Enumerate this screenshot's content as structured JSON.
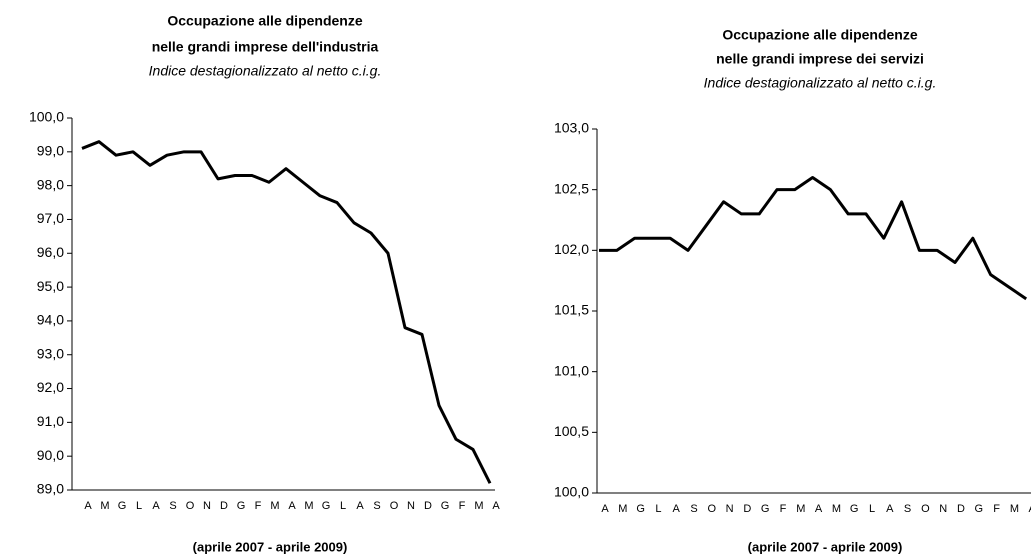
{
  "chart_data": [
    {
      "type": "line",
      "title": [
        "Occupazione alle dipendenze",
        "nelle grandi imprese dell'industria"
      ],
      "subtitle": "Indice destagionalizzato al netto c.i.g.",
      "xlabel": "(aprile 2007 - aprile 2009)",
      "categories": [
        "A",
        "M",
        "G",
        "L",
        "A",
        "S",
        "O",
        "N",
        "D",
        "G",
        "F",
        "M",
        "A",
        "M",
        "G",
        "L",
        "A",
        "S",
        "O",
        "N",
        "D",
        "G",
        "F",
        "M",
        "A"
      ],
      "series": [
        {
          "name": "Industria",
          "color": "#000000",
          "values": [
            99.1,
            99.3,
            98.9,
            99.0,
            98.6,
            98.9,
            99.0,
            99.0,
            98.2,
            98.3,
            98.3,
            98.1,
            98.5,
            98.1,
            97.7,
            97.5,
            96.9,
            96.6,
            96.0,
            93.8,
            93.6,
            91.5,
            90.5,
            90.2,
            89.2
          ]
        }
      ],
      "ylim": [
        89,
        100
      ],
      "yticks": [
        {
          "value": 89,
          "label": "89,0"
        },
        {
          "value": 90,
          "label": "90,0"
        },
        {
          "value": 91,
          "label": "91,0"
        },
        {
          "value": 92,
          "label": "92,0"
        },
        {
          "value": 93,
          "label": "93,0"
        },
        {
          "value": 94,
          "label": "94,0"
        },
        {
          "value": 95,
          "label": "95,0"
        },
        {
          "value": 96,
          "label": "96,0"
        },
        {
          "value": 97,
          "label": "97,0"
        },
        {
          "value": 98,
          "label": "98,0"
        },
        {
          "value": 99,
          "label": "99,0"
        },
        {
          "value": 100,
          "label": "100,0"
        }
      ],
      "grid": false
    },
    {
      "type": "line",
      "title": [
        "Occupazione alle dipendenze",
        "nelle grandi imprese dei servizi"
      ],
      "subtitle": "Indice destagionalizzato al netto c.i.g.",
      "xlabel": "(aprile 2007 - aprile 2009)",
      "categories": [
        "A",
        "M",
        "G",
        "L",
        "A",
        "S",
        "O",
        "N",
        "D",
        "G",
        "F",
        "M",
        "A",
        "M",
        "G",
        "L",
        "A",
        "S",
        "O",
        "N",
        "D",
        "G",
        "F",
        "M",
        "A"
      ],
      "series": [
        {
          "name": "Servizi",
          "color": "#000000",
          "values": [
            102.0,
            102.0,
            102.1,
            102.1,
            102.1,
            102.0,
            102.2,
            102.4,
            102.3,
            102.3,
            102.5,
            102.5,
            102.6,
            102.5,
            102.3,
            102.3,
            102.1,
            102.4,
            102.0,
            102.0,
            101.9,
            102.1,
            101.8,
            101.7,
            101.6
          ]
        }
      ],
      "ylim": [
        100,
        103
      ],
      "yticks": [
        {
          "value": 100,
          "label": "100,0"
        },
        {
          "value": 100.5,
          "label": "100,5"
        },
        {
          "value": 101,
          "label": "101,0"
        },
        {
          "value": 101.5,
          "label": "101,5"
        },
        {
          "value": 102,
          "label": "102,0"
        },
        {
          "value": 102.5,
          "label": "102,5"
        },
        {
          "value": 103,
          "label": "103,0"
        }
      ],
      "grid": false
    }
  ]
}
